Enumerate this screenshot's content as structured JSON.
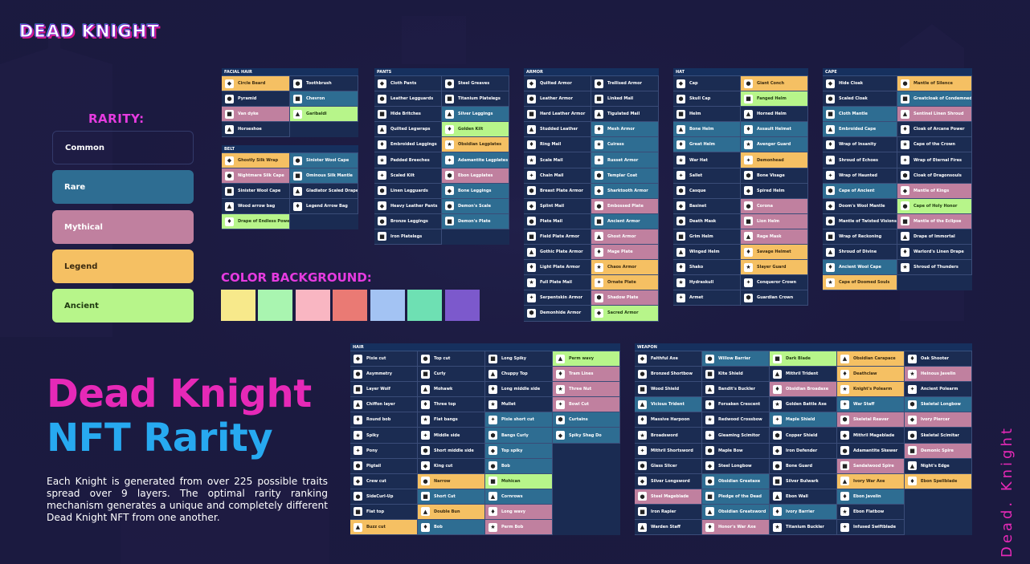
{
  "logo": "DEAD KNIGHT",
  "rarity": {
    "title": "RARITY:",
    "levels": [
      "Common",
      "Rare",
      "Mythical",
      "Legend",
      "Ancient"
    ],
    "colors": {
      "Common": "#1b2c52",
      "Rare": "#2e6d92",
      "Mythical": "#c0809f",
      "Legend": "#f5c063",
      "Ancient": "#b7f58a"
    }
  },
  "color_background": {
    "title": "COLOR BACKGROUND:",
    "swatches": [
      "#f7e98b",
      "#a9f5b0",
      "#f9b6c2",
      "#ea7a74",
      "#a3c3f3",
      "#6ee0b3",
      "#7c59cc"
    ]
  },
  "headline": {
    "line1": "Dead Knight",
    "line2": "NFT Rarity"
  },
  "description": "Each Knight is generated from over 225 possible traits spread over 9 layers. The optimal rarity ranking mechanism generates  a unique and completely different Dead Knight NFT from one another.",
  "vertical_text": "Dead. Knight",
  "tables": [
    {
      "title": "FACIAL HAIR",
      "cols": [
        [
          [
            "Circle Beard",
            "Legend"
          ],
          [
            "Pyramid",
            "Common"
          ],
          [
            "Van dyke",
            "Mythical"
          ],
          [
            "Horseshoe",
            "Common"
          ]
        ],
        [
          [
            "Toothbrush",
            "Common"
          ],
          [
            "Chevron",
            "Rare"
          ],
          [
            "Garibaldi",
            "Ancient"
          ]
        ]
      ]
    },
    {
      "title": "BELT",
      "cols": [
        [
          [
            "Ghostly Silk Wrap",
            "Legend"
          ],
          [
            "Nightmare Silk Cape",
            "Mythical"
          ],
          [
            "Sinister Wool Cape",
            "Common"
          ],
          [
            "Wood arrow bag",
            "Common"
          ],
          [
            "Drape of Endless Power",
            "Ancient"
          ]
        ],
        [
          [
            "Sinister Wool Cape",
            "Rare"
          ],
          [
            "Ominous Silk Mantle",
            "Rare"
          ],
          [
            "Gladiator Scaled Drape",
            "Common"
          ],
          [
            "Legend Arrow Bag",
            "Common"
          ]
        ]
      ]
    },
    {
      "title": "PANTS",
      "cols": [
        [
          [
            "Cloth Pants",
            "Common"
          ],
          [
            "Leather Legguards",
            "Common"
          ],
          [
            "Hide Britches",
            "Common"
          ],
          [
            "Quilted Legwraps",
            "Common"
          ],
          [
            "Embroided Leggings",
            "Common"
          ],
          [
            "Padded Breeches",
            "Common"
          ],
          [
            "Scaled Kilt",
            "Common"
          ],
          [
            "Linen Legguards",
            "Common"
          ],
          [
            "Heavy Leather Pants",
            "Common"
          ],
          [
            "Bronze Leggings",
            "Common"
          ],
          [
            "Iron Platelegs",
            "Common"
          ]
        ],
        [
          [
            "Steel Greaves",
            "Common"
          ],
          [
            "Titanium Platelegs",
            "Common"
          ],
          [
            "Silver Leggings",
            "Rare"
          ],
          [
            "Golden Kilt",
            "Ancient"
          ],
          [
            "Obsidian Legplates",
            "Legend"
          ],
          [
            "Adamantite Legplates",
            "Rare"
          ],
          [
            "Ebon Legplates",
            "Mythical"
          ],
          [
            "Bone Leggings",
            "Rare"
          ],
          [
            "Demon's Scale",
            "Rare"
          ],
          [
            "Demon's Plate",
            "Rare"
          ]
        ]
      ]
    },
    {
      "title": "ARMOR",
      "cols": [
        [
          [
            "Quilted Armor",
            "Common"
          ],
          [
            "Leather Armor",
            "Common"
          ],
          [
            "Hard Leather Armor",
            "Common"
          ],
          [
            "Studded Leather",
            "Common"
          ],
          [
            "Ring Mail",
            "Common"
          ],
          [
            "Scale Mail",
            "Common"
          ],
          [
            "Chain Mail",
            "Common"
          ],
          [
            "Breast Plate Armor",
            "Common"
          ],
          [
            "Splint Mail",
            "Common"
          ],
          [
            "Plate Mail",
            "Common"
          ],
          [
            "Field Plate Armor",
            "Common"
          ],
          [
            "Gothic Plate Armor",
            "Common"
          ],
          [
            "Light Plate Armor",
            "Common"
          ],
          [
            "Full Plate Mail",
            "Common"
          ],
          [
            "Serpentskin Armor",
            "Common"
          ],
          [
            "Demonhide Armor",
            "Common"
          ]
        ],
        [
          [
            "Trellised Armor",
            "Common"
          ],
          [
            "Linked Mail",
            "Common"
          ],
          [
            "Tigulated Mail",
            "Common"
          ],
          [
            "Mesh Armor",
            "Rare"
          ],
          [
            "Cuirass",
            "Rare"
          ],
          [
            "Russet Armor",
            "Rare"
          ],
          [
            "Templar Coat",
            "Rare"
          ],
          [
            "Sharktooth Armor",
            "Rare"
          ],
          [
            "Embossed Plate",
            "Mythical"
          ],
          [
            "Ancient Armor",
            "Rare"
          ],
          [
            "Ghost Armor",
            "Mythical"
          ],
          [
            "Mage Plate",
            "Mythical"
          ],
          [
            "Chaos Armor",
            "Legend"
          ],
          [
            "Ornate Plate",
            "Legend"
          ],
          [
            "Shadow Plate",
            "Mythical"
          ],
          [
            "Sacred Armor",
            "Ancient"
          ]
        ]
      ]
    },
    {
      "title": "HAT",
      "cols": [
        [
          [
            "Cap",
            "Common"
          ],
          [
            "Skull Cap",
            "Common"
          ],
          [
            "Helm",
            "Common"
          ],
          [
            "Bone Helm",
            "Rare"
          ],
          [
            "Great Helm",
            "Rare"
          ],
          [
            "War Hat",
            "Common"
          ],
          [
            "Sallet",
            "Common"
          ],
          [
            "Casque",
            "Common"
          ],
          [
            "Basinet",
            "Common"
          ],
          [
            "Death Mask",
            "Common"
          ],
          [
            "Grim Helm",
            "Common"
          ],
          [
            "Winged Helm",
            "Common"
          ],
          [
            "Shako",
            "Common"
          ],
          [
            "Hydraskull",
            "Common"
          ],
          [
            "Armet",
            "Common"
          ]
        ],
        [
          [
            "Giant Conch",
            "Legend"
          ],
          [
            "Fanged Helm",
            "Ancient"
          ],
          [
            "Horned Helm",
            "Common"
          ],
          [
            "Assault Helmet",
            "Rare"
          ],
          [
            "Avenger Guard",
            "Rare"
          ],
          [
            "Demonhead",
            "Legend"
          ],
          [
            "Bone Visage",
            "Common"
          ],
          [
            "Spired Helm",
            "Common"
          ],
          [
            "Corona",
            "Mythical"
          ],
          [
            "Lion Helm",
            "Mythical"
          ],
          [
            "Rage Mask",
            "Mythical"
          ],
          [
            "Savage Helmet",
            "Legend"
          ],
          [
            "Slayer Guard",
            "Legend"
          ],
          [
            "Conqueror Crown",
            "Common"
          ],
          [
            "Guardian Crown",
            "Common"
          ]
        ]
      ]
    },
    {
      "title": "CAPE",
      "cols": [
        [
          [
            "Hide Cloak",
            "Common"
          ],
          [
            "Scaled Cloak",
            "Common"
          ],
          [
            "Cloth Mantle",
            "Rare"
          ],
          [
            "Embroided Cape",
            "Rare"
          ],
          [
            "Wrap of Insanity",
            "Common"
          ],
          [
            "Shroud of Echoes",
            "Common"
          ],
          [
            "Wrap of Haunted",
            "Common"
          ],
          [
            "Cape of Ancient",
            "Rare"
          ],
          [
            "Doom's Wool Mantle",
            "Common"
          ],
          [
            "Mantle of Twisted Visions",
            "Common"
          ],
          [
            "Wrap of Reckoning",
            "Common"
          ],
          [
            "Shroud of Divine",
            "Common"
          ],
          [
            "Ancient Wool Cape",
            "Rare"
          ],
          [
            "Cape of Doomed Souls",
            "Legend"
          ]
        ],
        [
          [
            "Mantle of Silence",
            "Legend"
          ],
          [
            "Greatcloak of Condemned",
            "Rare"
          ],
          [
            "Sentinel Linen Shroud",
            "Mythical"
          ],
          [
            "Cloak of Arcane Power",
            "Common"
          ],
          [
            "Cape of the Crown",
            "Common"
          ],
          [
            "Wrap of Eternal Fires",
            "Common"
          ],
          [
            "Cloak of Dragonsouls",
            "Common"
          ],
          [
            "Mantle of Kings",
            "Mythical"
          ],
          [
            "Cape of Holy Honor",
            "Ancient"
          ],
          [
            "Mantle of the Eclipse",
            "Mythical"
          ],
          [
            "Drape of Immortal",
            "Common"
          ],
          [
            "Warlord's Linen Drape",
            "Common"
          ],
          [
            "Shroud of Thunders",
            "Common"
          ]
        ]
      ]
    },
    {
      "title": "HAIR",
      "cols": [
        [
          [
            "Pixie cut",
            "Common"
          ],
          [
            "Asymmetry",
            "Common"
          ],
          [
            "Layer Wolf",
            "Common"
          ],
          [
            "Chiffon layer",
            "Common"
          ],
          [
            "Round bob",
            "Common"
          ],
          [
            "Spiky",
            "Common"
          ],
          [
            "Pony",
            "Common"
          ],
          [
            "Pigtail",
            "Common"
          ],
          [
            "Crew cut",
            "Common"
          ],
          [
            "SideCurl-Up",
            "Common"
          ],
          [
            "Flat top",
            "Common"
          ],
          [
            "Buzz cut",
            "Legend"
          ]
        ],
        [
          [
            "Top cut",
            "Common"
          ],
          [
            "Curly",
            "Common"
          ],
          [
            "Mohawk",
            "Common"
          ],
          [
            "Three top",
            "Common"
          ],
          [
            "Flat bangs",
            "Common"
          ],
          [
            "Middle side",
            "Common"
          ],
          [
            "Short middle side",
            "Common"
          ],
          [
            "King cut",
            "Common"
          ],
          [
            "Narrow",
            "Legend"
          ],
          [
            "Short Cut",
            "Rare"
          ],
          [
            "Double Bun",
            "Legend"
          ],
          [
            "Bob",
            "Rare"
          ]
        ],
        [
          [
            "Long Spiky",
            "Common"
          ],
          [
            "Chuppy Top",
            "Common"
          ],
          [
            "Long middle side",
            "Common"
          ],
          [
            "Mullet",
            "Common"
          ],
          [
            "Pixie short cut",
            "Rare"
          ],
          [
            "Bangs Curly",
            "Rare"
          ],
          [
            "Top spiky",
            "Rare"
          ],
          [
            "Bob",
            "Rare"
          ],
          [
            "Mohican",
            "Ancient"
          ],
          [
            "Cornrows",
            "Rare"
          ],
          [
            "Long wavy",
            "Mythical"
          ],
          [
            "Perm Bob",
            "Mythical"
          ]
        ],
        [
          [
            "Perm wavy",
            "Ancient"
          ],
          [
            "Tram Lines",
            "Mythical"
          ],
          [
            "Three Nut",
            "Mythical"
          ],
          [
            "Bowl Cut",
            "Mythical"
          ],
          [
            "Curtains",
            "Rare"
          ],
          [
            "Spiky Shag Do",
            "Rare"
          ]
        ]
      ]
    },
    {
      "title": "WEAPON",
      "cols": [
        [
          [
            "Faithful Axe",
            "Common"
          ],
          [
            "Bronzed Shortbow",
            "Common"
          ],
          [
            "Wood Shield",
            "Common"
          ],
          [
            "Vicious Trident",
            "Rare"
          ],
          [
            "Massive Harpoon",
            "Common"
          ],
          [
            "Broadsword",
            "Common"
          ],
          [
            "Mithril Shortsword",
            "Common"
          ],
          [
            "Glass Slicer",
            "Common"
          ],
          [
            "Silver Longsword",
            "Common"
          ],
          [
            "Steel Mageblade",
            "Mythical"
          ],
          [
            "Iron Rapier",
            "Common"
          ],
          [
            "Warden Staff",
            "Common"
          ]
        ],
        [
          [
            "Willow Barrier",
            "Rare"
          ],
          [
            "Kite Shield",
            "Common"
          ],
          [
            "Bandit's Buckler",
            "Common"
          ],
          [
            "Forsaken Crescent",
            "Common"
          ],
          [
            "Redwood Crossbow",
            "Common"
          ],
          [
            "Gleaming Scimitor",
            "Common"
          ],
          [
            "Maple Bow",
            "Common"
          ],
          [
            "Steel Longbow",
            "Common"
          ],
          [
            "Obsidian Greataxe",
            "Rare"
          ],
          [
            "Pledge of the Dead",
            "Rare"
          ],
          [
            "Obsidian Greatsword",
            "Rare"
          ],
          [
            "Honor's War Axe",
            "Mythical"
          ]
        ],
        [
          [
            "Dark Blade",
            "Ancient"
          ],
          [
            "Mithril Trident",
            "Common"
          ],
          [
            "Obsidian Broadaxe",
            "Mythical"
          ],
          [
            "Golden Battle Axe",
            "Common"
          ],
          [
            "Maple Shield",
            "Rare"
          ],
          [
            "Copper Shield",
            "Common"
          ],
          [
            "Iron Defender",
            "Common"
          ],
          [
            "Bone Guard",
            "Common"
          ],
          [
            "Silver Bulwark",
            "Common"
          ],
          [
            "Ebon Wall",
            "Common"
          ],
          [
            "Ivory Barrier",
            "Rare"
          ],
          [
            "Titanium Buckler",
            "Common"
          ]
        ],
        [
          [
            "Obsidian Carapace",
            "Legend"
          ],
          [
            "Deathclaw",
            "Legend"
          ],
          [
            "Knight's Polearm",
            "Legend"
          ],
          [
            "War Staff",
            "Rare"
          ],
          [
            "Skeletal Reaver",
            "Mythical"
          ],
          [
            "Mithril Mageblade",
            "Common"
          ],
          [
            "Adamantite Skewer",
            "Common"
          ],
          [
            "Sandalwood Spire",
            "Mythical"
          ],
          [
            "Ivory War Axe",
            "Legend"
          ],
          [
            "Ebon Javelin",
            "Rare"
          ],
          [
            "Ebon Flatbow",
            "Common"
          ],
          [
            "Infused Swiftblade",
            "Common"
          ]
        ],
        [
          [
            "Oak Shooter",
            "Common"
          ],
          [
            "Heinous Javelin",
            "Mythical"
          ],
          [
            "Ancient Polearm",
            "Common"
          ],
          [
            "Skeletal Longbow",
            "Rare"
          ],
          [
            "Ivory Piercer",
            "Mythical"
          ],
          [
            "Skeletal Scimitar",
            "Common"
          ],
          [
            "Demonic Spire",
            "Mythical"
          ],
          [
            "Night's Edge",
            "Common"
          ],
          [
            "Ebon Spellblade",
            "Legend"
          ]
        ]
      ]
    }
  ]
}
